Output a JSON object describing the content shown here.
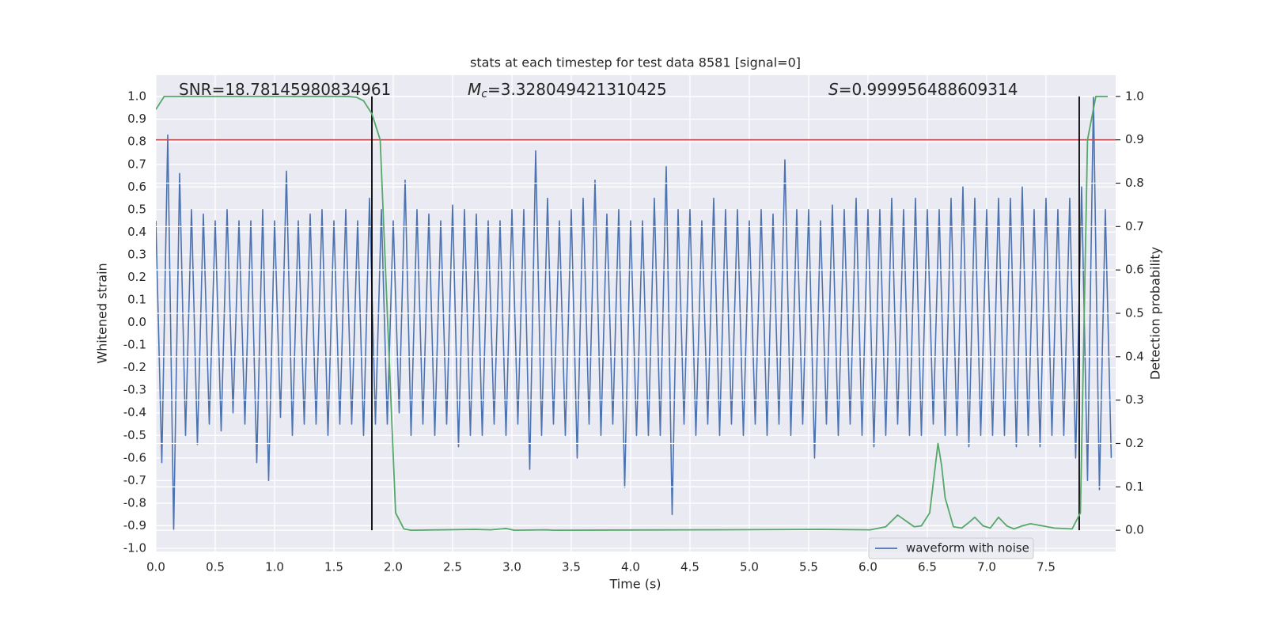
{
  "chart_data": {
    "type": "line",
    "title": "stats at each timestep for test data 8581 [signal=0]",
    "xlabel": "Time (s)",
    "ylabel": "Whitened strain",
    "y2label": "Detection probability",
    "annotations": [
      {
        "label": "SNR",
        "text": "=18.78145980834961",
        "italic": false
      },
      {
        "label": "M",
        "sub": "c",
        "text": "=3.328049421310425",
        "italic": true
      },
      {
        "label": "S",
        "text": "=0.999956488609314",
        "italic": true
      }
    ],
    "xlim": [
      0,
      8.087
    ],
    "ylim": [
      -1.014,
      1.095
    ],
    "y2lim": [
      -0.049,
      1.049
    ],
    "xticks": [
      {
        "value": 0,
        "label": "0.0"
      },
      0.5,
      {
        "value": 1,
        "label": "1.0"
      },
      1.5,
      {
        "value": 2,
        "label": "2.0"
      },
      2.5,
      {
        "value": 3,
        "label": "3.0"
      },
      3.5,
      {
        "value": 4,
        "label": "4.0"
      },
      4.5,
      {
        "value": 5,
        "label": "5.0"
      },
      5.5,
      {
        "value": 6,
        "label": "6.0"
      },
      6.5,
      {
        "value": 7,
        "label": "7.0"
      },
      7.5
    ],
    "yticks": [
      {
        "value": -1,
        "label": "-1.0"
      },
      -0.9,
      -0.8,
      -0.7,
      -0.6,
      -0.5,
      -0.4,
      -0.3,
      -0.2,
      -0.1,
      {
        "value": 0,
        "label": "0.0"
      },
      0.1,
      0.2,
      0.3,
      0.4,
      0.5,
      0.6,
      0.7,
      0.8,
      0.9,
      {
        "value": 1,
        "label": "1.0"
      }
    ],
    "y2ticks": [
      {
        "value": 0,
        "label": "0.0"
      },
      0.1,
      0.2,
      0.3,
      0.4,
      0.5,
      0.6,
      0.7,
      0.8,
      0.9,
      {
        "value": 1,
        "label": "1.0"
      }
    ],
    "grid": true,
    "legend": "lower right",
    "threshold": 0.9,
    "threshold_color": "#c44e52",
    "vlines": [
      1.82,
      7.78
    ],
    "vline_color": "#000000",
    "series": [
      {
        "name": "waveform with noise",
        "color": "#4c72b0",
        "x": [
          0,
          0.05,
          0.1,
          0.15,
          0.2,
          0.25,
          0.3,
          0.35,
          0.4,
          0.45,
          0.5,
          0.55,
          0.6,
          0.65,
          0.7,
          0.75,
          0.8,
          0.85,
          0.9,
          0.95,
          1,
          1.05,
          1.1,
          1.15,
          1.2,
          1.25,
          1.3,
          1.35,
          1.4,
          1.45,
          1.5,
          1.55,
          1.6,
          1.65,
          1.7,
          1.75,
          1.8,
          1.85,
          1.9,
          1.95,
          2,
          2.05,
          2.1,
          2.15,
          2.2,
          2.25,
          2.3,
          2.35,
          2.4,
          2.45,
          2.5,
          2.55,
          2.6,
          2.65,
          2.7,
          2.75,
          2.8,
          2.85,
          2.9,
          2.95,
          3,
          3.05,
          3.1,
          3.15,
          3.2,
          3.25,
          3.3,
          3.35,
          3.4,
          3.45,
          3.5,
          3.55,
          3.6,
          3.65,
          3.7,
          3.75,
          3.8,
          3.85,
          3.9,
          3.95,
          4,
          4.05,
          4.1,
          4.15,
          4.2,
          4.25,
          4.3,
          4.35,
          4.4,
          4.45,
          4.5,
          4.55,
          4.6,
          4.65,
          4.7,
          4.75,
          4.8,
          4.85,
          4.9,
          4.95,
          5,
          5.05,
          5.1,
          5.15,
          5.2,
          5.25,
          5.3,
          5.35,
          5.4,
          5.45,
          5.5,
          5.55,
          5.6,
          5.65,
          5.7,
          5.75,
          5.8,
          5.85,
          5.9,
          5.95,
          6,
          6.05,
          6.1,
          6.15,
          6.2,
          6.25,
          6.3,
          6.35,
          6.4,
          6.45,
          6.5,
          6.55,
          6.6,
          6.65,
          6.7,
          6.75,
          6.8,
          6.85,
          6.9,
          6.95,
          7,
          7.05,
          7.1,
          7.15,
          7.2,
          7.25,
          7.3,
          7.35,
          7.4,
          7.45,
          7.5,
          7.55,
          7.6,
          7.65,
          7.7,
          7.75,
          7.8,
          7.85,
          7.9,
          7.95,
          8,
          8.05
        ],
        "values": [
          0.45,
          -0.62,
          0.83,
          -0.92,
          0.66,
          -0.5,
          0.5,
          -0.54,
          0.48,
          -0.45,
          0.45,
          -0.48,
          0.5,
          -0.4,
          0.45,
          -0.45,
          0.45,
          -0.62,
          0.5,
          -0.7,
          0.45,
          -0.42,
          0.67,
          -0.5,
          0.45,
          -0.45,
          0.48,
          -0.45,
          0.5,
          -0.5,
          0.45,
          -0.45,
          0.5,
          -0.45,
          0.45,
          -0.5,
          0.55,
          -0.45,
          0.5,
          -0.45,
          0.45,
          -0.4,
          0.63,
          -0.5,
          0.5,
          -0.45,
          0.48,
          -0.5,
          0.45,
          -0.45,
          0.52,
          -0.55,
          0.5,
          -0.5,
          0.48,
          -0.5,
          0.45,
          -0.45,
          0.45,
          -0.5,
          0.5,
          -0.45,
          0.5,
          -0.65,
          0.76,
          -0.5,
          0.55,
          -0.45,
          0.45,
          -0.5,
          0.5,
          -0.6,
          0.55,
          -0.45,
          0.63,
          -0.5,
          0.48,
          -0.45,
          0.5,
          -0.73,
          0.45,
          -0.5,
          0.45,
          -0.5,
          0.55,
          -0.5,
          0.69,
          -0.85,
          0.5,
          -0.45,
          0.5,
          -0.5,
          0.45,
          -0.45,
          0.55,
          -0.5,
          0.5,
          -0.45,
          0.5,
          -0.5,
          0.45,
          -0.45,
          0.5,
          -0.5,
          0.48,
          -0.45,
          0.72,
          -0.5,
          0.5,
          -0.45,
          0.5,
          -0.6,
          0.45,
          -0.45,
          0.52,
          -0.5,
          0.5,
          -0.45,
          0.55,
          -0.5,
          0.5,
          -0.55,
          0.5,
          -0.5,
          0.55,
          -0.45,
          0.5,
          -0.5,
          0.55,
          -0.5,
          0.5,
          -0.45,
          0.5,
          -0.5,
          0.55,
          -0.5,
          0.6,
          -0.55,
          0.55,
          -0.5,
          0.5,
          -0.5,
          0.55,
          -0.5,
          0.55,
          -0.55,
          0.6,
          -0.5,
          0.5,
          -0.55,
          0.55,
          -0.5,
          0.5,
          -0.5,
          0.55,
          -0.6,
          0.6,
          -0.7,
          1.0,
          -0.74,
          0.5,
          -0.6
        ]
      },
      {
        "color": "#55a868",
        "axis": "y2",
        "x": [
          0,
          0.07,
          1.62,
          1.69,
          1.75,
          1.82,
          1.89,
          1.95,
          2.02,
          2.09,
          2.15,
          2.69,
          2.82,
          2.95,
          3.02,
          3.29,
          3.35,
          4.69,
          5.62,
          6.02,
          6.15,
          6.25,
          6.39,
          6.45,
          6.52,
          6.59,
          6.62,
          6.65,
          6.72,
          6.79,
          6.85,
          6.9,
          6.97,
          7.03,
          7.1,
          7.17,
          7.23,
          7.3,
          7.37,
          7.57,
          7.72,
          7.79,
          7.85,
          7.92,
          8.02
        ],
        "values": [
          0.97,
          1.0,
          1.0,
          0.998,
          0.99,
          0.96,
          0.9,
          0.5,
          0.04,
          0.003,
          0.0,
          0.002,
          0.001,
          0.004,
          0.0,
          0.001,
          0.0,
          0.001,
          0.002,
          0.001,
          0.008,
          0.035,
          0.008,
          0.01,
          0.04,
          0.2,
          0.15,
          0.075,
          0.008,
          0.005,
          0.018,
          0.03,
          0.01,
          0.005,
          0.03,
          0.01,
          0.003,
          0.01,
          0.015,
          0.005,
          0.003,
          0.04,
          0.9,
          1.0,
          1.0
        ]
      }
    ]
  }
}
